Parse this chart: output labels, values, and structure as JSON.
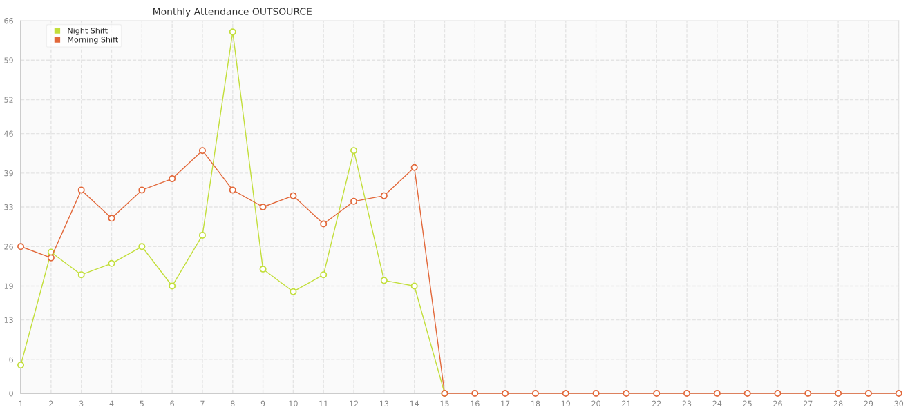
{
  "chart_data": {
    "type": "line",
    "title": "Monthly Attendance OUTSOURCE",
    "categories": [
      "1",
      "2",
      "3",
      "4",
      "5",
      "6",
      "7",
      "8",
      "9",
      "10",
      "11",
      "12",
      "13",
      "14",
      "15",
      "16",
      "17",
      "18",
      "19",
      "20",
      "21",
      "22",
      "23",
      "24",
      "25",
      "26",
      "27",
      "28",
      "29",
      "30"
    ],
    "series": [
      {
        "name": "Night Shift",
        "color": "#c2de3a",
        "values": [
          5,
          25,
          21,
          23,
          26,
          19,
          28,
          64,
          22,
          18,
          21,
          43,
          20,
          19,
          0,
          null,
          null,
          null,
          null,
          null,
          null,
          null,
          null,
          null,
          null,
          null,
          null,
          null,
          null,
          null
        ]
      },
      {
        "name": "Morning Shift",
        "color": "#e2683a",
        "values": [
          26,
          24,
          36,
          31,
          36,
          38,
          43,
          36,
          33,
          35,
          30,
          34,
          35,
          40,
          0,
          0,
          0,
          0,
          0,
          0,
          0,
          0,
          0,
          0,
          0,
          0,
          0,
          0,
          0,
          0
        ]
      }
    ],
    "ylim": [
      0,
      66
    ],
    "yticks": [
      0,
      6,
      13,
      19,
      26,
      33,
      39,
      46,
      52,
      59,
      66
    ],
    "grid": true,
    "legend": "top left",
    "marker": "circle",
    "line_style": "solid"
  }
}
